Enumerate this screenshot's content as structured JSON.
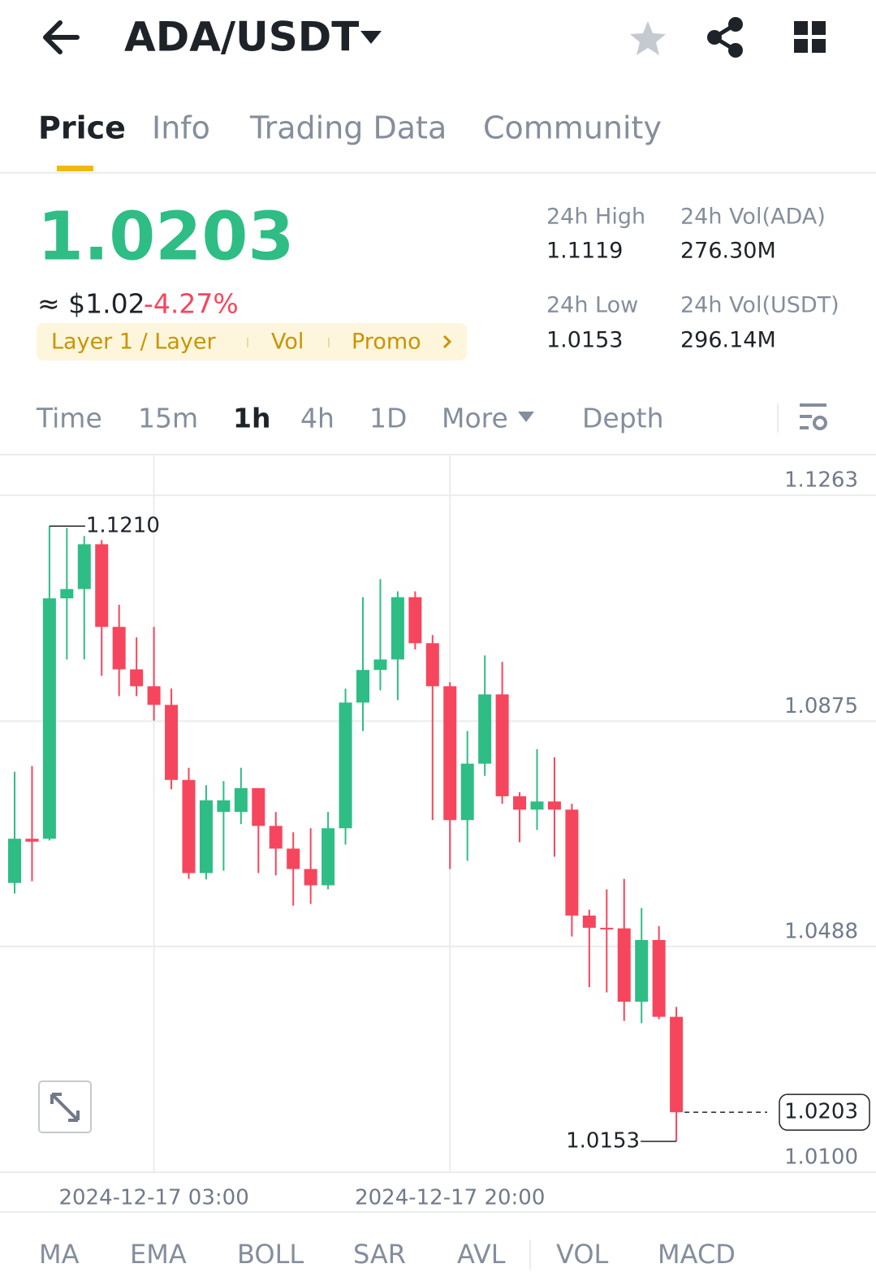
{
  "header": {
    "pair": "ADA/USDT"
  },
  "tabs": [
    "Price",
    "Info",
    "Trading Data",
    "Community"
  ],
  "price": {
    "last": "1.0203",
    "approx": "≈ $1.02",
    "change": "-4.27%",
    "tags": [
      "Layer 1 / Layer",
      "Vol",
      "Promo"
    ]
  },
  "stats": [
    {
      "label": "24h High",
      "value": "1.1119"
    },
    {
      "label": "24h Vol(ADA)",
      "value": "276.30M"
    },
    {
      "label": "24h Low",
      "value": "1.0153"
    },
    {
      "label": "24h Vol(USDT)",
      "value": "296.14M"
    }
  ],
  "intervals": [
    "Time",
    "15m",
    "1h",
    "4h",
    "1D",
    "More",
    "Depth"
  ],
  "indicators": [
    "MA",
    "EMA",
    "BOLL",
    "SAR",
    "AVL",
    "VOL",
    "MACD"
  ],
  "chart_data": {
    "type": "candlestick",
    "x": [
      null,
      null,
      null,
      null,
      null,
      null,
      null,
      null,
      "2024-12-17 03:00",
      null,
      null,
      null,
      null,
      null,
      null,
      null,
      null,
      null,
      null,
      null,
      null,
      null,
      null,
      null,
      null,
      "2024-12-17 20:00",
      null,
      null,
      null,
      null,
      null,
      null,
      null,
      null,
      null,
      null,
      null,
      null,
      null
    ],
    "open": [
      1.0597,
      1.0673,
      1.0673,
      1.1086,
      1.1102,
      1.1179,
      1.1037,
      1.0964,
      1.0935,
      1.0903,
      1.0774,
      1.0614,
      1.0719,
      1.0719,
      1.076,
      1.0695,
      1.0656,
      1.0621,
      1.0593,
      1.0691,
      1.0907,
      1.0963,
      1.0981,
      1.1088,
      1.1009,
      1.0935,
      1.0705,
      1.0802,
      1.0921,
      1.0746,
      1.0723,
      1.0737,
      1.0723,
      1.0541,
      1.052,
      1.0519,
      1.0393,
      1.0499,
      1.0367
    ],
    "close": [
      1.0673,
      1.0668,
      1.1086,
      1.1102,
      1.1179,
      1.1037,
      1.0964,
      1.0935,
      1.0903,
      1.0774,
      1.0614,
      1.0739,
      1.0739,
      1.076,
      1.0695,
      1.0656,
      1.0621,
      1.0593,
      1.0691,
      1.0907,
      1.0963,
      1.0981,
      1.1088,
      1.1009,
      1.0935,
      1.0705,
      1.0802,
      1.0921,
      1.0746,
      1.0723,
      1.0737,
      1.0723,
      1.0541,
      1.052,
      1.0519,
      1.0393,
      1.0499,
      1.0367,
      1.0203
    ],
    "high": [
      1.0788,
      1.0798,
      1.121,
      1.1207,
      1.1193,
      1.1186,
      1.1075,
      1.1019,
      1.1037,
      1.0931,
      1.0795,
      1.0765,
      1.0772,
      1.0795,
      1.076,
      1.0719,
      1.0684,
      1.0691,
      1.0719,
      1.0931,
      1.1088,
      1.1119,
      1.1098,
      1.1098,
      1.1023,
      1.0942,
      1.0858,
      1.0988,
      1.0977,
      1.0753,
      1.0827,
      1.0813,
      1.0733,
      1.0551,
      1.0586,
      1.0604,
      1.0554,
      1.0523,
      1.0384
    ],
    "low": [
      1.0579,
      1.06,
      1.067,
      1.0981,
      1.0981,
      1.0953,
      1.0918,
      1.0918,
      1.0876,
      1.0758,
      1.0604,
      1.0603,
      1.0618,
      1.0698,
      1.0614,
      1.061,
      1.0558,
      1.0561,
      1.0586,
      1.0663,
      1.0858,
      1.0928,
      1.0911,
      1.0998,
      1.0705,
      1.0621,
      1.0635,
      1.0781,
      1.0733,
      1.0667,
      1.0688,
      1.0642,
      1.0505,
      1.0418,
      1.0409,
      1.036,
      1.0356,
      1.0363,
      1.0153
    ],
    "up_color": "#2ebd85",
    "down_color": "#f6465d",
    "ylim": [
      1.01,
      1.1333
    ],
    "yticks": [
      {
        "value": 1.01,
        "label": "1.0100"
      },
      1.0488,
      1.0875,
      1.1263
    ],
    "high_mark": {
      "value": 1.121,
      "label": "1.1210"
    },
    "low_mark": 1.0153,
    "last_mark": 1.0203,
    "grid": true
  }
}
